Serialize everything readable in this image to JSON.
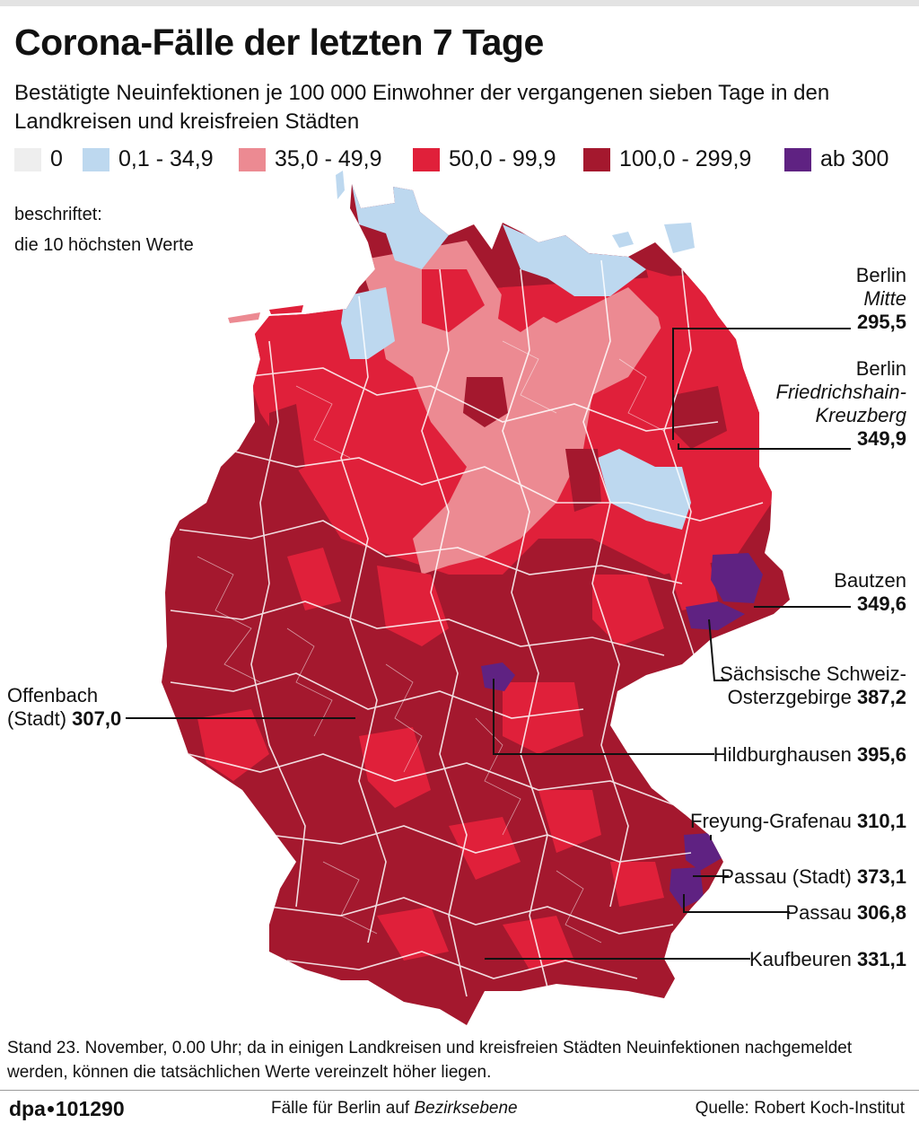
{
  "title": "Corona-Fälle der letzten 7 Tage",
  "subtitle": "Bestätigte Neuinfektionen je 100 000 Einwohner der vergangenen sieben Tage in den Landkreisen und kreisfreien Städten",
  "legend": [
    {
      "label": "0",
      "color": "#eeeeee"
    },
    {
      "label": "0,1 - 34,9",
      "color": "#bdd8ef"
    },
    {
      "label": "35,0 - 49,9",
      "color": "#ec8a92"
    },
    {
      "label": "50,0 - 99,9",
      "color": "#e0203a"
    },
    {
      "label": "100,0 - 299,9",
      "color": "#a4182e"
    },
    {
      "label": "ab 300",
      "color": "#5f2282"
    }
  ],
  "note_line1": "beschriftet:",
  "note_line2": "die 10 höchsten Werte",
  "labels": {
    "berlin_mitte": {
      "name1": "Berlin",
      "name2": "Mitte",
      "value": "295,5"
    },
    "berlin_fk": {
      "name1": "Berlin",
      "name2": "Friedrichshain-",
      "name3": "Kreuzberg",
      "value": "349,9"
    },
    "bautzen": {
      "name": "Bautzen",
      "value": "349,6"
    },
    "saechsische": {
      "name1": "Sächsische Schweiz-",
      "name2": "Osterzgebirge",
      "value": "387,2"
    },
    "hildburghausen": {
      "name": "Hildburghausen",
      "value": "395,6"
    },
    "freyung": {
      "name": "Freyung-Grafenau",
      "value": "310,1"
    },
    "passau_stadt": {
      "name": "Passau (Stadt)",
      "value": "373,1"
    },
    "passau": {
      "name": "Passau",
      "value": "306,8"
    },
    "kaufbeuren": {
      "name": "Kaufbeuren",
      "value": "331,1"
    },
    "offenbach": {
      "name1": "Offenbach",
      "name2": "(Stadt)",
      "value": "307,0"
    }
  },
  "footnote": "Stand 23. November, 0.00 Uhr; da in einigen Landkreisen und kreisfreien Städten Neuinfektionen nachgemeldet werden, können die tatsächlichen Werte vereinzelt höher liegen.",
  "brand_a": "dpa",
  "brand_b": "101290",
  "berlin_note_prefix": "Fälle für Berlin auf ",
  "berlin_note_em": "Bezirksebene",
  "source": "Quelle: Robert Koch-Institut"
}
